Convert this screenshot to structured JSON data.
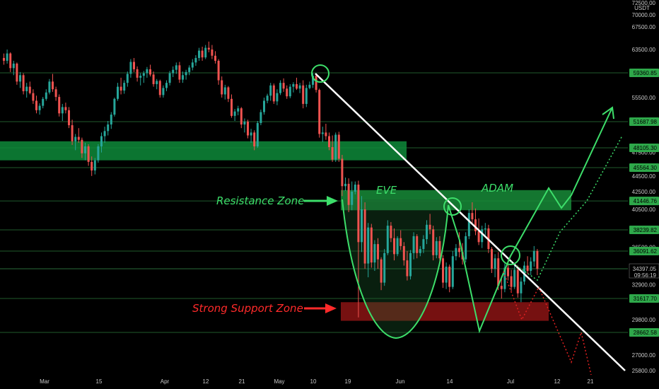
{
  "chart_data": {
    "type": "candlestick",
    "quote_currency": "USDT",
    "y_ticks": [
      72500,
      70000,
      67500,
      63500,
      59500,
      55500,
      51500,
      47500,
      44500,
      42500,
      40500,
      36500,
      32900,
      29800,
      27000,
      25800
    ],
    "x_ticks": [
      "Mar",
      "15",
      "Apr",
      "12",
      "21",
      "May",
      "10",
      "19",
      "Jun",
      "14",
      "Jul",
      "12",
      "21"
    ],
    "price_levels": [
      {
        "label": "59360.85",
        "value": 59360.85
      },
      {
        "label": "51687.98",
        "value": 51687.98
      },
      {
        "label": "48105.30",
        "value": 48105.3
      },
      {
        "label": "45564.30",
        "value": 45564.3
      },
      {
        "label": "41446.76",
        "value": 41446.76
      },
      {
        "label": "38239.82",
        "value": 38239.82
      },
      {
        "label": "36091.62",
        "value": 36091.62
      },
      {
        "label": "31617.70",
        "value": 31617.7
      },
      {
        "label": "28662.58",
        "value": 28662.58
      }
    ],
    "current_price": {
      "label": "34397.05",
      "countdown": "09:56:19",
      "value": 34397.05
    },
    "zones": [
      {
        "name": "resistance-top",
        "low": 46500,
        "high": 49000,
        "color": "#0e8a3a"
      },
      {
        "name": "resistance",
        "low": 40400,
        "high": 42700,
        "color": "#178b38"
      },
      {
        "name": "support",
        "low": 29700,
        "high": 31300,
        "color": "#8b1414"
      }
    ],
    "annotations": [
      {
        "text": "Resistance Zone",
        "color": "#3dde6a"
      },
      {
        "text": "Strong Support Zone",
        "color": "#ff2a2a"
      },
      {
        "text": "EVE",
        "color": "#3dde6a"
      },
      {
        "text": "ADAM",
        "color": "#3dde6a"
      }
    ],
    "candles": [
      [
        62000,
        62800,
        60800,
        61500
      ],
      [
        61500,
        63500,
        61000,
        62800
      ],
      [
        62800,
        63000,
        59500,
        60200
      ],
      [
        60200,
        61500,
        59000,
        61000
      ],
      [
        61000,
        61200,
        57500,
        58000
      ],
      [
        58000,
        59500,
        57000,
        59000
      ],
      [
        59000,
        59300,
        56000,
        56500
      ],
      [
        56500,
        57800,
        55500,
        57200
      ],
      [
        57200,
        58000,
        56000,
        56200
      ],
      [
        56200,
        56800,
        54500,
        55000
      ],
      [
        55000,
        55800,
        53000,
        53500
      ],
      [
        53500,
        54600,
        52800,
        54200
      ],
      [
        54200,
        55600,
        53800,
        55300
      ],
      [
        55300,
        56800,
        55000,
        56300
      ],
      [
        56300,
        58400,
        56000,
        58000
      ],
      [
        58000,
        59200,
        56400,
        56800
      ],
      [
        56800,
        57200,
        55000,
        55600
      ],
      [
        55600,
        56000,
        52500,
        53000
      ],
      [
        53000,
        54500,
        51800,
        54000
      ],
      [
        54000,
        54700,
        53000,
        53500
      ],
      [
        53500,
        54000,
        50800,
        51200
      ],
      [
        51200,
        52000,
        48500,
        49000
      ],
      [
        49000,
        50000,
        47800,
        49600
      ],
      [
        49600,
        50800,
        48800,
        49200
      ],
      [
        49200,
        49500,
        46800,
        47400
      ],
      [
        47400,
        48800,
        46500,
        48300
      ],
      [
        48300,
        48600,
        45800,
        46300
      ],
      [
        46300,
        47000,
        44500,
        45200
      ],
      [
        45200,
        46800,
        44700,
        46500
      ],
      [
        46500,
        48600,
        46200,
        48300
      ],
      [
        48300,
        50200,
        47500,
        49700
      ],
      [
        49700,
        51000,
        48800,
        50400
      ],
      [
        50400,
        51800,
        49800,
        51300
      ],
      [
        51300,
        53200,
        50700,
        52800
      ],
      [
        52800,
        55500,
        52500,
        55300
      ],
      [
        55300,
        57800,
        55000,
        57200
      ],
      [
        57200,
        58600,
        56000,
        56600
      ],
      [
        56600,
        58200,
        56100,
        57800
      ],
      [
        57800,
        59600,
        57200,
        59200
      ],
      [
        59200,
        61800,
        58600,
        61300
      ],
      [
        61300,
        62000,
        59500,
        60000
      ],
      [
        60000,
        60500,
        58000,
        58600
      ],
      [
        58600,
        59300,
        57400,
        58900
      ],
      [
        58900,
        59700,
        57800,
        59300
      ],
      [
        59300,
        60400,
        58600,
        60000
      ],
      [
        60000,
        60800,
        58800,
        59100
      ],
      [
        59100,
        59600,
        57200,
        57600
      ],
      [
        57600,
        58400,
        56800,
        58100
      ],
      [
        58100,
        58300,
        55500,
        55900
      ],
      [
        55900,
        57400,
        55500,
        57000
      ],
      [
        57000,
        58200,
        56500,
        57800
      ],
      [
        57800,
        59700,
        57400,
        59300
      ],
      [
        59300,
        60500,
        58700,
        59900
      ],
      [
        59900,
        61200,
        59200,
        60700
      ],
      [
        60700,
        61300,
        57800,
        58300
      ],
      [
        58300,
        59600,
        57800,
        59000
      ],
      [
        59000,
        59900,
        58300,
        59500
      ],
      [
        59500,
        60700,
        59000,
        60300
      ],
      [
        60300,
        61800,
        59800,
        61200
      ],
      [
        61200,
        62500,
        60600,
        62000
      ],
      [
        62000,
        63800,
        61500,
        63300
      ],
      [
        63300,
        64000,
        61500,
        62100
      ],
      [
        62100,
        64300,
        61800,
        63800
      ],
      [
        63800,
        64900,
        63000,
        63500
      ],
      [
        63500,
        64300,
        61800,
        62400
      ],
      [
        62400,
        63200,
        61000,
        61500
      ],
      [
        61500,
        61800,
        57500,
        58200
      ],
      [
        58200,
        58800,
        55500,
        56000
      ],
      [
        56000,
        57500,
        55200,
        57100
      ],
      [
        57100,
        57300,
        54800,
        55300
      ],
      [
        55300,
        56000,
        52300,
        52600
      ],
      [
        52600,
        53700,
        51800,
        53300
      ],
      [
        53300,
        54200,
        52700,
        53800
      ],
      [
        53800,
        54000,
        50800,
        51300
      ],
      [
        51300,
        52200,
        50200,
        51700
      ],
      [
        51700,
        52000,
        49400,
        49800
      ],
      [
        49800,
        50700,
        48800,
        50200
      ],
      [
        50200,
        50500,
        47800,
        48300
      ],
      [
        48300,
        51800,
        48100,
        51500
      ],
      [
        51500,
        53600,
        51200,
        53200
      ],
      [
        53200,
        55500,
        52800,
        55000
      ],
      [
        55000,
        56100,
        54600,
        55800
      ],
      [
        55800,
        57800,
        55000,
        57400
      ],
      [
        57400,
        57700,
        54500,
        54900
      ],
      [
        54900,
        56800,
        54300,
        56200
      ],
      [
        56200,
        58200,
        55900,
        57800
      ],
      [
        57800,
        58500,
        56400,
        56900
      ],
      [
        56900,
        57400,
        55300,
        55700
      ],
      [
        55700,
        57600,
        55400,
        57200
      ],
      [
        57200,
        57900,
        56300,
        57600
      ],
      [
        57600,
        58600,
        56700,
        56900
      ],
      [
        56900,
        57800,
        56200,
        57400
      ],
      [
        57400,
        58200,
        53800,
        54500
      ],
      [
        54500,
        57500,
        54000,
        57000
      ],
      [
        57000,
        58000,
        56800,
        57500
      ],
      [
        57500,
        59300,
        57000,
        58900
      ],
      [
        58900,
        59100,
        56300,
        56700
      ],
      [
        56700,
        56900,
        49500,
        50000
      ],
      [
        50000,
        51000,
        48900,
        50200
      ],
      [
        50200,
        51400,
        49200,
        49700
      ],
      [
        49700,
        50200,
        47800,
        48200
      ],
      [
        48200,
        49800,
        46300,
        46600
      ],
      [
        46600,
        50200,
        46300,
        49900
      ],
      [
        49900,
        50300,
        46300,
        46700
      ],
      [
        46700,
        47200,
        42000,
        43200
      ],
      [
        43200,
        44300,
        42600,
        43500
      ],
      [
        43500,
        44200,
        40200,
        41000
      ],
      [
        41000,
        43800,
        40400,
        42500
      ],
      [
        42500,
        43800,
        42200,
        43400
      ],
      [
        43400,
        43900,
        30000,
        37000
      ],
      [
        37000,
        42000,
        36000,
        40500
      ],
      [
        40500,
        41300,
        34400,
        34900
      ],
      [
        34900,
        39000,
        33600,
        38500
      ],
      [
        38500,
        38900,
        34500,
        35000
      ],
      [
        35000,
        37200,
        34200,
        36800
      ],
      [
        36800,
        37400,
        34400,
        35300
      ],
      [
        35300,
        35500,
        32400,
        33100
      ],
      [
        33100,
        36300,
        32800,
        35900
      ],
      [
        35900,
        39300,
        35700,
        38700
      ],
      [
        38700,
        39100,
        37000,
        37400
      ],
      [
        37400,
        38400,
        35200,
        35800
      ],
      [
        35800,
        37600,
        35600,
        37400
      ],
      [
        37400,
        38200,
        36200,
        36600
      ],
      [
        36600,
        37000,
        34700,
        35200
      ],
      [
        35200,
        36100,
        33300,
        33700
      ],
      [
        33700,
        36200,
        33400,
        35900
      ],
      [
        35900,
        38000,
        35300,
        37600
      ],
      [
        37600,
        37800,
        35400,
        35900
      ],
      [
        35900,
        36600,
        35600,
        36300
      ],
      [
        36300,
        37700,
        35900,
        37300
      ],
      [
        37300,
        39300,
        36800,
        38800
      ],
      [
        38800,
        40000,
        37800,
        38300
      ],
      [
        38300,
        38700,
        35200,
        35700
      ],
      [
        35700,
        37500,
        35400,
        37100
      ],
      [
        37100,
        37600,
        35000,
        35400
      ],
      [
        35400,
        35700,
        32600,
        33100
      ],
      [
        33100,
        35000,
        32500,
        34600
      ],
      [
        34600,
        34800,
        32200,
        32700
      ],
      [
        32700,
        36100,
        32500,
        35600
      ],
      [
        35600,
        36800,
        35200,
        36400
      ],
      [
        36400,
        38000,
        35500,
        36000
      ],
      [
        36000,
        36900,
        34800,
        35300
      ],
      [
        35300,
        38000,
        35000,
        37600
      ],
      [
        37600,
        40500,
        37300,
        40100
      ],
      [
        40100,
        41300,
        39000,
        39400
      ],
      [
        39400,
        40600,
        37700,
        38100
      ],
      [
        38100,
        39500,
        36700,
        37000
      ],
      [
        37000,
        38700,
        36400,
        38300
      ],
      [
        38300,
        39000,
        37700,
        38400
      ],
      [
        38400,
        38800,
        35900,
        36300
      ],
      [
        36300,
        36500,
        34000,
        34400
      ],
      [
        34400,
        35800,
        33600,
        35400
      ],
      [
        35400,
        36000,
        32400,
        32800
      ],
      [
        32800,
        33700,
        31600,
        32500
      ],
      [
        32500,
        34900,
        32200,
        34500
      ],
      [
        34500,
        35200,
        33300,
        33700
      ],
      [
        33700,
        34300,
        32300,
        32700
      ],
      [
        32700,
        34700,
        32500,
        34300
      ],
      [
        34300,
        34700,
        31700,
        32100
      ],
      [
        32100,
        33600,
        31300,
        33200
      ],
      [
        33200,
        35100,
        32900,
        34700
      ],
      [
        34700,
        35600,
        33900,
        34200
      ],
      [
        34200,
        35500,
        33800,
        35100
      ],
      [
        35100,
        36600,
        34600,
        36100
      ],
      [
        36100,
        36300,
        33800,
        34400
      ]
    ]
  }
}
